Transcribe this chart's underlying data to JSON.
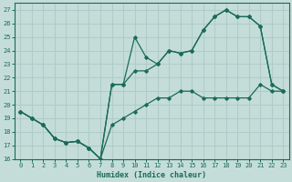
{
  "xlabel": "Humidex (Indice chaleur)",
  "ylabel": "",
  "bg_color": "#c5ddd8",
  "grid_color": "#b0ccc8",
  "line_color": "#1a6b5a",
  "xlim": [
    -0.5,
    23.5
  ],
  "ylim": [
    16,
    27.5
  ],
  "xticks": [
    0,
    1,
    2,
    3,
    4,
    5,
    6,
    7,
    8,
    9,
    10,
    11,
    12,
    13,
    14,
    15,
    16,
    17,
    18,
    19,
    20,
    21,
    22,
    23
  ],
  "yticks": [
    16,
    17,
    18,
    19,
    20,
    21,
    22,
    23,
    24,
    25,
    26,
    27
  ],
  "series": [
    {
      "x": [
        0,
        1,
        2,
        3,
        4,
        5,
        6,
        7,
        8,
        9,
        10,
        11,
        12,
        13,
        14,
        15,
        16,
        17,
        18,
        19,
        20,
        21,
        22,
        23
      ],
      "y": [
        19.5,
        19.0,
        18.5,
        17.5,
        17.2,
        17.3,
        16.8,
        16.0,
        21.5,
        21.5,
        25.0,
        23.5,
        23.0,
        24.0,
        23.8,
        24.0,
        25.5,
        26.5,
        27.0,
        26.5,
        26.5,
        25.8,
        21.5,
        21.0
      ]
    },
    {
      "x": [
        0,
        1,
        2,
        3,
        4,
        5,
        6,
        7,
        8,
        9,
        10,
        11,
        12,
        13,
        14,
        15,
        16,
        17,
        18,
        19,
        20,
        21,
        22,
        23
      ],
      "y": [
        19.5,
        19.0,
        18.5,
        17.5,
        17.2,
        17.3,
        16.8,
        16.0,
        21.5,
        21.5,
        22.5,
        22.5,
        23.0,
        24.0,
        23.8,
        24.0,
        25.5,
        26.5,
        27.0,
        26.5,
        26.5,
        25.8,
        21.5,
        21.0
      ]
    },
    {
      "x": [
        0,
        1,
        2,
        3,
        4,
        5,
        6,
        7,
        8,
        9,
        10,
        11,
        12,
        13,
        14,
        15,
        16,
        17,
        18,
        19,
        20,
        21,
        22,
        23
      ],
      "y": [
        19.5,
        19.0,
        18.5,
        17.5,
        17.2,
        17.3,
        16.8,
        16.0,
        18.5,
        19.0,
        19.5,
        20.0,
        20.5,
        20.5,
        21.0,
        21.0,
        20.5,
        20.5,
        20.5,
        20.5,
        20.5,
        21.5,
        21.0,
        21.0
      ]
    }
  ]
}
